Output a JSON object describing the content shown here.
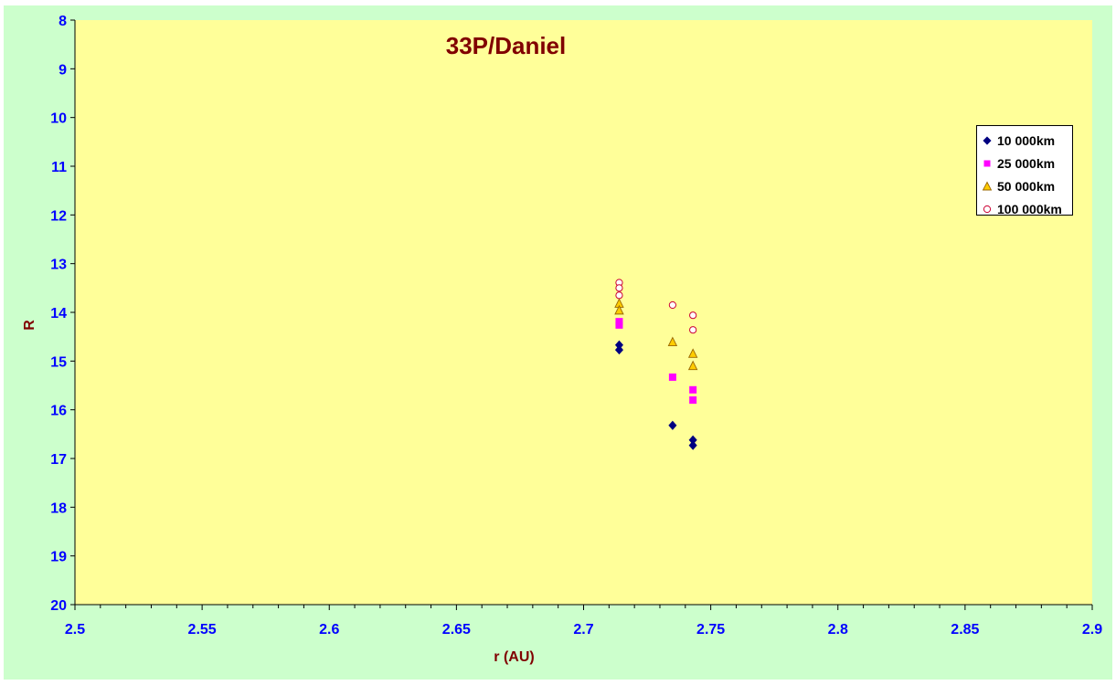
{
  "chart_data": {
    "type": "scatter",
    "title": "33P/Daniel",
    "xlabel": "r (AU)",
    "ylabel": "R",
    "xlim": [
      2.5,
      2.9
    ],
    "ylim": [
      8,
      20
    ],
    "y_inverted": true,
    "x_ticks": [
      "2.5",
      "2.55",
      "2.6",
      "2.65",
      "2.7",
      "2.75",
      "2.8",
      "2.85",
      "2.9"
    ],
    "y_ticks": [
      "8",
      "9",
      "10",
      "11",
      "12",
      "13",
      "14",
      "15",
      "16",
      "17",
      "18",
      "19",
      "20"
    ],
    "grid": false,
    "legend_position": "top-right",
    "series": [
      {
        "name": "10 000km",
        "marker": "diamond",
        "color": "#000080",
        "points": [
          [
            2.714,
            14.67
          ],
          [
            2.714,
            14.77
          ],
          [
            2.735,
            16.32
          ],
          [
            2.743,
            16.62
          ],
          [
            2.743,
            16.73
          ]
        ]
      },
      {
        "name": "25 000km",
        "marker": "square",
        "color": "#ff00ff",
        "points": [
          [
            2.714,
            14.19
          ],
          [
            2.714,
            14.26
          ],
          [
            2.735,
            15.33
          ],
          [
            2.743,
            15.59
          ],
          [
            2.743,
            15.8
          ]
        ]
      },
      {
        "name": "50 000km",
        "marker": "triangle",
        "color": "#ffcc00",
        "points": [
          [
            2.714,
            13.82
          ],
          [
            2.714,
            13.96
          ],
          [
            2.735,
            14.61
          ],
          [
            2.743,
            14.85
          ],
          [
            2.743,
            15.1
          ]
        ]
      },
      {
        "name": "100 000km",
        "marker": "circle",
        "color": "#cc0033",
        "points": [
          [
            2.714,
            13.39
          ],
          [
            2.714,
            13.5
          ],
          [
            2.714,
            13.65
          ],
          [
            2.735,
            13.85
          ],
          [
            2.743,
            14.06
          ],
          [
            2.743,
            14.36
          ]
        ]
      }
    ]
  },
  "colors": {
    "frame_bg": "#ccffcc",
    "plot_bg": "#ffff99",
    "tick_label": "#0000ff",
    "title_and_axis_label": "#800000",
    "axis_line": "#000000"
  }
}
